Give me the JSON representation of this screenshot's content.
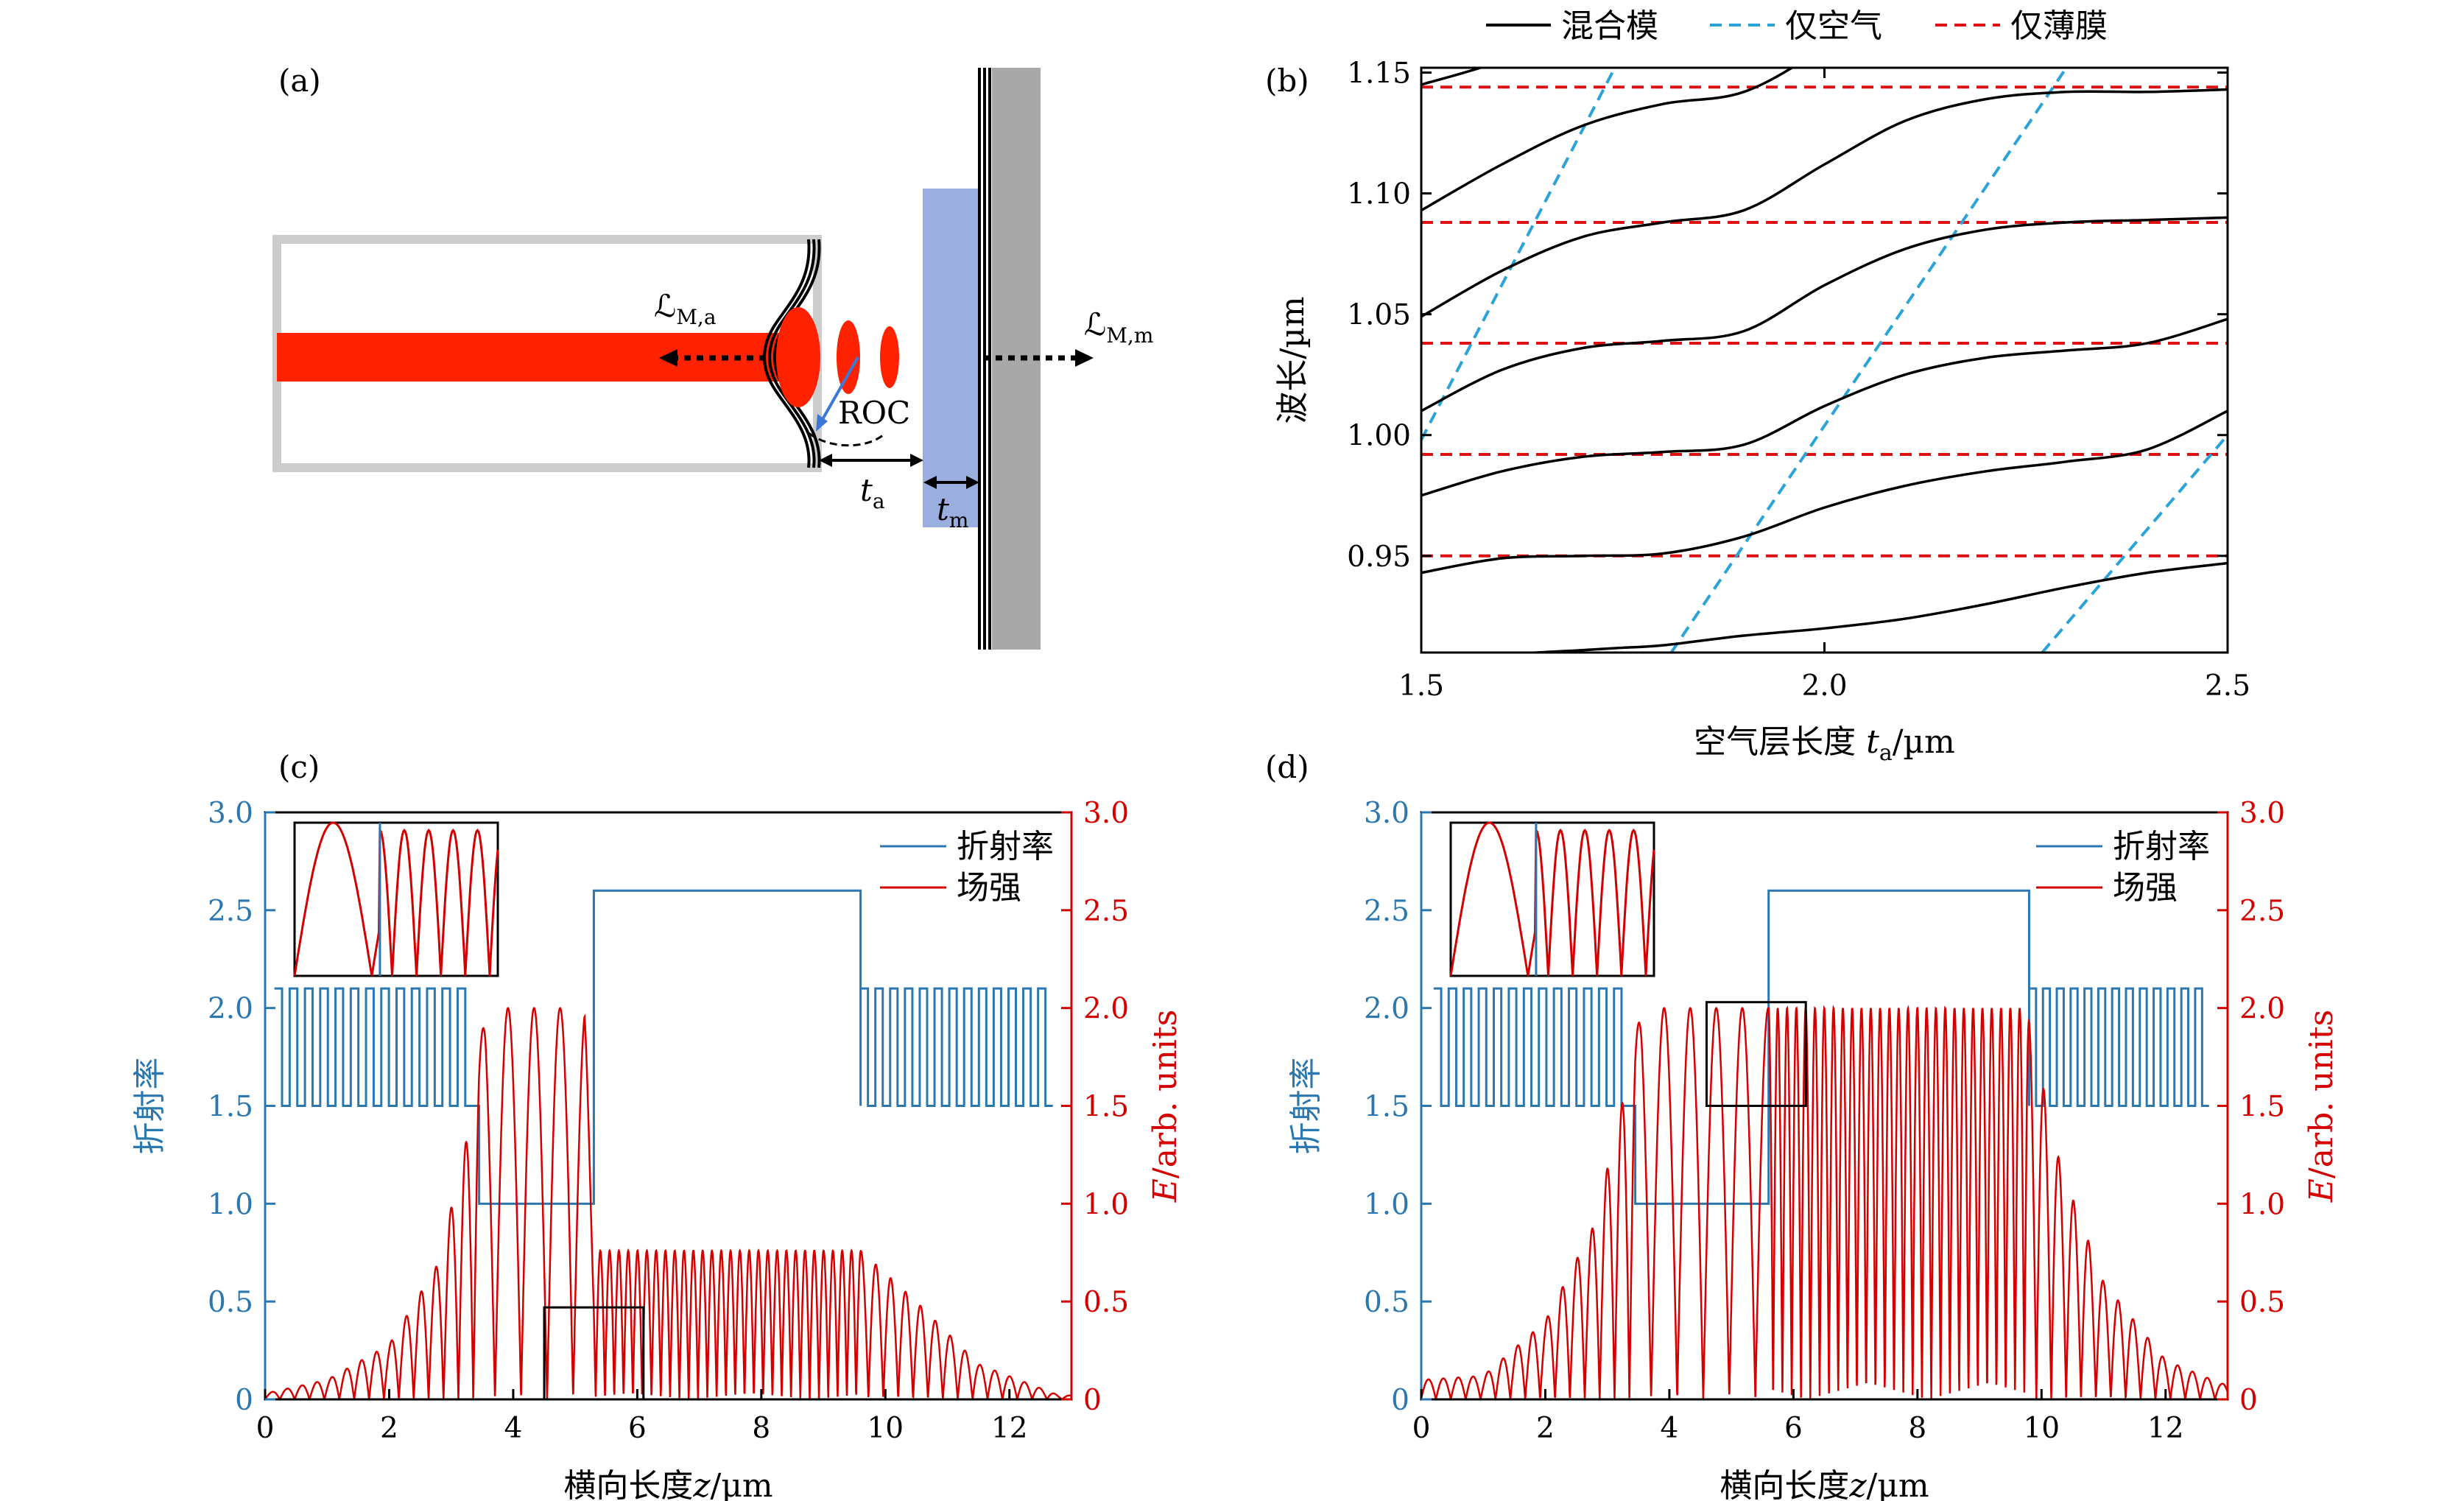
{
  "colors": {
    "fiber_red": "#ff2200",
    "mixed_mode": "#000000",
    "air_only": "#2aa3d8",
    "film_only": "#dd1111",
    "index_blue": "#2b78b0",
    "field_red": "#d40000",
    "mirror_blue": "#9aaee0",
    "mirror_gray": "#a8a8a8"
  },
  "panel_a": {
    "label": "(a)",
    "annotations": {
      "L_air": "ℒ",
      "L_air_sub": "M,a",
      "L_film": "ℒ",
      "L_film_sub": "M,m",
      "roc": "ROC",
      "t_a": "t",
      "t_a_sub": "a",
      "t_m": "t",
      "t_m_sub": "m"
    }
  },
  "chart_data": [
    {
      "panel": "(b)",
      "type": "line",
      "legend": {
        "placement": "top",
        "entries": [
          {
            "name": "混合模",
            "style": "solid",
            "color": "#000000"
          },
          {
            "name": "仅空气",
            "style": "dashed",
            "color": "#2aa3d8"
          },
          {
            "name": "仅薄膜",
            "style": "dashed",
            "color": "#dd1111"
          }
        ]
      },
      "xlabel": "空气层长度",
      "xlabel_var": "t",
      "xlabel_sub": "a",
      "xlabel_unit": "/µm",
      "ylabel": "波长/µm",
      "xlim": [
        1.5,
        2.5
      ],
      "ylim": [
        0.91,
        1.152
      ],
      "xticks": [
        "1.5",
        "2.0",
        "2.5"
      ],
      "xtick_values": [
        1.5,
        2.0,
        2.5
      ],
      "yticks": [
        "0.95",
        "1.00",
        "1.05",
        "1.10",
        "1.15"
      ],
      "ytick_values": [
        0.95,
        1.0,
        1.05,
        1.1,
        1.15
      ],
      "film_only_wavelengths": [
        0.95,
        0.992,
        1.038,
        1.088,
        1.144
      ],
      "air_only_lines": [
        {
          "x": [
            1.5,
            1.74
          ],
          "y": [
            0.998,
            1.152
          ]
        },
        {
          "x": [
            1.81,
            2.3
          ],
          "y": [
            0.91,
            1.152
          ]
        },
        {
          "x": [
            2.27,
            2.5
          ],
          "y": [
            0.91,
            1.0
          ]
        }
      ],
      "mixed_mode_curves": [
        {
          "x": [
            1.5,
            1.6,
            1.7,
            1.75,
            1.8,
            1.9,
            2.0,
            2.1,
            2.2,
            2.3,
            2.4,
            2.5
          ],
          "y": [
            0.905,
            0.909,
            0.911,
            0.912,
            0.913,
            0.917,
            0.92,
            0.924,
            0.93,
            0.937,
            0.943,
            0.947
          ]
        },
        {
          "x": [
            1.5,
            1.6,
            1.7,
            1.8,
            1.9,
            2.0,
            2.1,
            2.2,
            2.3,
            2.4,
            2.5
          ],
          "y": [
            0.943,
            0.949,
            0.95,
            0.951,
            0.958,
            0.97,
            0.979,
            0.985,
            0.989,
            0.994,
            1.01
          ]
        },
        {
          "x": [
            1.5,
            1.6,
            1.7,
            1.8,
            1.9,
            2.0,
            2.1,
            2.2,
            2.3,
            2.4,
            2.5
          ],
          "y": [
            0.975,
            0.985,
            0.991,
            0.993,
            0.996,
            1.012,
            1.025,
            1.032,
            1.035,
            1.038,
            1.048
          ]
        },
        {
          "x": [
            1.5,
            1.6,
            1.7,
            1.8,
            1.9,
            2.0,
            2.1,
            2.2,
            2.3,
            2.4,
            2.5
          ],
          "y": [
            1.01,
            1.027,
            1.036,
            1.039,
            1.043,
            1.062,
            1.077,
            1.085,
            1.088,
            1.089,
            1.09
          ]
        },
        {
          "x": [
            1.5,
            1.6,
            1.7,
            1.8,
            1.9,
            2.0,
            2.1,
            2.2,
            2.3,
            2.4,
            2.5
          ],
          "y": [
            1.049,
            1.068,
            1.082,
            1.088,
            1.093,
            1.112,
            1.13,
            1.139,
            1.142,
            1.142,
            1.143
          ]
        },
        {
          "x": [
            1.5,
            1.6,
            1.7,
            1.8,
            1.9,
            2.0,
            2.1,
            2.2,
            2.3
          ],
          "y": [
            1.093,
            1.112,
            1.128,
            1.137,
            1.142,
            1.16,
            1.18,
            1.19,
            1.195
          ]
        },
        {
          "x": [
            1.5,
            1.6,
            1.7
          ],
          "y": [
            1.145,
            1.155,
            1.17
          ]
        }
      ]
    },
    {
      "panel": "(c)",
      "type": "line",
      "legend": {
        "placement": "top-right",
        "entries": [
          {
            "name": "折射率",
            "color": "#2b78b0"
          },
          {
            "name": "场强",
            "color": "#d40000"
          }
        ]
      },
      "xlabel": "横向长度",
      "xlabel_var": "z",
      "xlabel_unit": "/µm",
      "ylabel_left": "折射率",
      "ylabel_right_var": "E",
      "ylabel_right_unit": "/arb. units",
      "xlim": [
        0,
        13
      ],
      "ylim": [
        0,
        3.0
      ],
      "xticks": [
        "0",
        "2",
        "4",
        "6",
        "8",
        "10",
        "12"
      ],
      "xtick_values": [
        0,
        2,
        4,
        6,
        8,
        10,
        12
      ],
      "yticks": [
        "0",
        "0.5",
        "1.0",
        "1.5",
        "2.0",
        "2.5",
        "3.0"
      ],
      "ytick_values": [
        0,
        0.5,
        1.0,
        1.5,
        2.0,
        2.5,
        3.0
      ],
      "refractive_index": {
        "dbr_left": {
          "x_range": [
            0.15,
            3.35
          ],
          "low": 1.5,
          "high": 2.1,
          "periods": 13
        },
        "air_gap": {
          "x_range": [
            3.45,
            5.3
          ],
          "value": 1.0
        },
        "film": {
          "x_range": [
            5.3,
            9.6
          ],
          "value": 2.6
        },
        "dbr_right": {
          "x_range": [
            9.6,
            12.7
          ],
          "low": 1.5,
          "high": 2.1,
          "periods": 13
        }
      },
      "field": {
        "envelope": [
          {
            "x": 0.0,
            "y": 0.03
          },
          {
            "x": 1.0,
            "y": 0.1
          },
          {
            "x": 2.0,
            "y": 0.28
          },
          {
            "x": 2.8,
            "y": 0.7
          },
          {
            "x": 3.3,
            "y": 1.4
          },
          {
            "x": 3.55,
            "y": 2.0
          },
          {
            "x": 5.15,
            "y": 2.0
          },
          {
            "x": 5.3,
            "y": 0.76
          },
          {
            "x": 9.6,
            "y": 0.76
          },
          {
            "x": 10.5,
            "y": 0.5
          },
          {
            "x": 11.5,
            "y": 0.18
          },
          {
            "x": 12.8,
            "y": 0.02
          }
        ],
        "fringe_period_dbr": 0.24,
        "fringe_period_air": 0.42,
        "fringe_period_film": 0.15
      },
      "zoom_box": {
        "x": [
          4.5,
          6.1
        ],
        "y": [
          0,
          0.47
        ]
      }
    },
    {
      "panel": "(d)",
      "type": "line",
      "legend": {
        "placement": "top-right",
        "entries": [
          {
            "name": "折射率",
            "color": "#2b78b0"
          },
          {
            "name": "场强",
            "color": "#d40000"
          }
        ]
      },
      "xlabel": "横向长度",
      "xlabel_var": "z",
      "xlabel_unit": "/µm",
      "ylabel_left": "折射率",
      "ylabel_right_var": "E",
      "ylabel_right_unit": "/arb. units",
      "xlim": [
        0,
        13
      ],
      "ylim": [
        0,
        3.0
      ],
      "xticks": [
        "0",
        "2",
        "4",
        "6",
        "8",
        "10",
        "12"
      ],
      "xtick_values": [
        0,
        2,
        4,
        6,
        8,
        10,
        12
      ],
      "yticks": [
        "0",
        "0.5",
        "1.0",
        "1.5",
        "2.0",
        "2.5",
        "3.0"
      ],
      "ytick_values": [
        0,
        0.5,
        1.0,
        1.5,
        2.0,
        2.5,
        3.0
      ],
      "refractive_index": {
        "dbr_left": {
          "x_range": [
            0.2,
            3.35
          ],
          "low": 1.5,
          "high": 2.1,
          "periods": 13
        },
        "air_gap": {
          "x_range": [
            3.45,
            5.6
          ],
          "value": 1.0
        },
        "film": {
          "x_range": [
            5.6,
            9.8
          ],
          "value": 2.6
        },
        "dbr_right": {
          "x_range": [
            9.8,
            12.7
          ],
          "low": 1.5,
          "high": 2.1,
          "periods": 13
        }
      },
      "field": {
        "envelope": [
          {
            "x": 0.0,
            "y": 0.1
          },
          {
            "x": 1.0,
            "y": 0.12
          },
          {
            "x": 2.0,
            "y": 0.4
          },
          {
            "x": 2.8,
            "y": 0.9
          },
          {
            "x": 3.3,
            "y": 1.6
          },
          {
            "x": 3.55,
            "y": 2.0
          },
          {
            "x": 9.75,
            "y": 2.0
          },
          {
            "x": 10.3,
            "y": 1.2
          },
          {
            "x": 11.0,
            "y": 0.6
          },
          {
            "x": 12.0,
            "y": 0.2
          },
          {
            "x": 12.9,
            "y": 0.08
          }
        ],
        "fringe_period_dbr": 0.24,
        "fringe_period_air": 0.42,
        "fringe_period_film": 0.15
      },
      "zoom_box": {
        "x": [
          4.6,
          6.2
        ],
        "y": [
          1.5,
          2.03
        ]
      }
    }
  ]
}
